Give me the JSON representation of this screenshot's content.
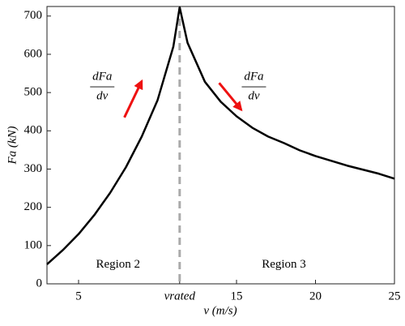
{
  "chart_data": {
    "type": "line",
    "y_label": "Fa (kN)",
    "x_label": "v (m/s)",
    "x": [
      3,
      4,
      5,
      6,
      7,
      8,
      9,
      10,
      11,
      11.4,
      11.9,
      13,
      14,
      15,
      16,
      17,
      18,
      19,
      20,
      22,
      24,
      25
    ],
    "series": [
      {
        "name": "Fa",
        "color": "#000000",
        "values": [
          51,
          88,
          130,
          180,
          238,
          305,
          385,
          480,
          620,
          723,
          630,
          528,
          476,
          438,
          408,
          385,
          368,
          349,
          334,
          309,
          288,
          275
        ]
      }
    ],
    "xlim": [
      3,
      25
    ],
    "ylim": [
      0,
      725
    ],
    "xticks": [
      5,
      {
        "value": 11.4,
        "label": "vrated"
      },
      15,
      20,
      25
    ],
    "yticks": [
      0,
      100,
      200,
      300,
      400,
      500,
      600,
      700
    ],
    "rated_line": {
      "value": 11.4,
      "color": "#aaaaaa"
    },
    "annotations": [
      {
        "text": "Region 2",
        "x": 7.5,
        "y": 50
      },
      {
        "text": "Region 3",
        "x": 18,
        "y": 50
      },
      {
        "numerator": "dFa",
        "denominator": "dv",
        "x": 6.5,
        "y": 515,
        "arrow": [
          [
            7.9,
            435
          ],
          [
            9.0,
            530
          ]
        ]
      },
      {
        "numerator": "dFa",
        "denominator": "dv",
        "x": 16.1,
        "y": 515,
        "arrow": [
          [
            13.9,
            525
          ],
          [
            15.3,
            455
          ]
        ]
      }
    ],
    "arrow_color": "#ee1111"
  }
}
